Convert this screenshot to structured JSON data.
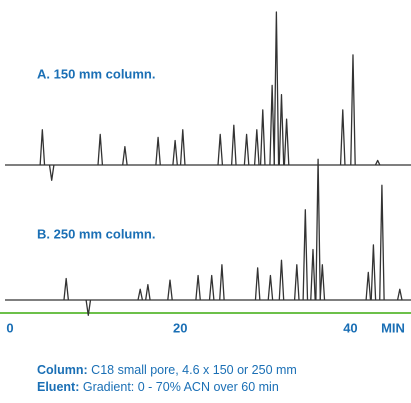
{
  "chart_data": {
    "type": "chromatogram",
    "x_label": "MIN",
    "xlim": [
      0,
      47
    ],
    "xticks": [
      0,
      20,
      40
    ],
    "axis_color": "#6cc04a",
    "label_color": "#1a6fb5",
    "series": [
      {
        "name": "A. 150 mm column.",
        "color": "#333333",
        "x": [
          3.8,
          4.9,
          10.6,
          13.5,
          17.4,
          19.4,
          20.3,
          24.7,
          26.3,
          27.8,
          29.0,
          29.7,
          30.8,
          31.3,
          31.9,
          32.5,
          39.1,
          40.3,
          43.2
        ],
        "values": [
          23,
          -10,
          20,
          12,
          18,
          16,
          23,
          20,
          26,
          20,
          23,
          36,
          52,
          100,
          46,
          30,
          36,
          72,
          3
        ]
      },
      {
        "name": "B. 250 mm column.",
        "color": "#333333",
        "x": [
          6.6,
          9.2,
          15.3,
          16.2,
          18.8,
          22.1,
          23.7,
          24.9,
          29.1,
          30.6,
          31.9,
          33.7,
          34.7,
          35.6,
          36.2,
          36.7,
          42.1,
          42.7,
          43.7,
          45.8
        ],
        "values": [
          14,
          -10,
          7,
          10,
          13,
          16,
          16,
          23,
          21,
          16,
          26,
          23,
          59,
          33,
          92,
          23,
          18,
          36,
          75,
          7
        ]
      }
    ]
  },
  "notes": [
    {
      "label": "Column:",
      "text": "C18  small pore,  4.6  x 150 or 250 mm"
    },
    {
      "label": "Eluent:",
      "text": "Gradient: 0 - 70% ACN over  60 min"
    }
  ]
}
